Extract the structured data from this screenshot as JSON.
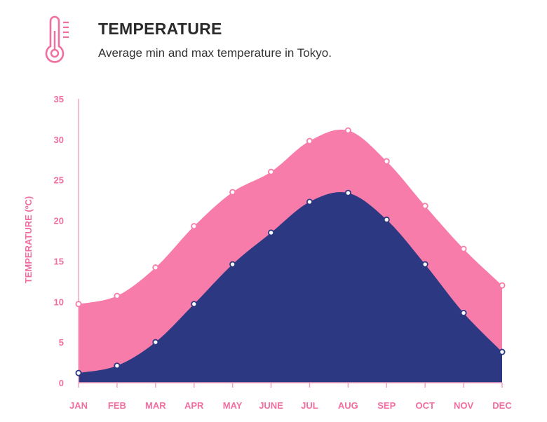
{
  "header": {
    "title": "TEMPERATURE",
    "subtitle": "Average min and max temperature in Tokyo."
  },
  "icon": "thermometer-icon",
  "colors": {
    "max_fill": "#f77caa",
    "min_fill": "#2c3882",
    "accent": "#f06ea0",
    "axis": "#f3a3c2"
  },
  "chart_data": {
    "type": "area",
    "categories": [
      "JAN",
      "FEB",
      "MAR",
      "APR",
      "MAY",
      "JUNE",
      "JUL",
      "AUG",
      "SEP",
      "OCT",
      "NOV",
      "DEC"
    ],
    "series": [
      {
        "values": [
          9.7,
          10.7,
          14.2,
          19.3,
          23.5,
          26.0,
          29.8,
          31.1,
          27.3,
          21.8,
          16.5,
          12.0
        ]
      },
      {
        "values": [
          1.2,
          2.1,
          5.0,
          9.7,
          14.6,
          18.5,
          22.3,
          23.4,
          20.1,
          14.6,
          8.6,
          3.8
        ]
      }
    ],
    "ylabel": "TEMPERATURE (ºC)",
    "ylim": [
      0,
      35
    ],
    "yticks": [
      0,
      5,
      10,
      15,
      20,
      25,
      30,
      35
    ],
    "grid": false,
    "legend": "none"
  }
}
